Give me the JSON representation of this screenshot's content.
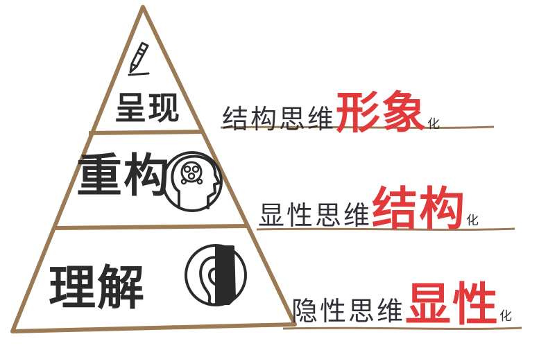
{
  "pyramid": {
    "levels": [
      {
        "label": "呈现"
      },
      {
        "label": "重构"
      },
      {
        "label": "理解"
      }
    ]
  },
  "phrases": [
    {
      "base": "结构思维",
      "emphasis": "形象",
      "suffix": "化"
    },
    {
      "base": "显性思维",
      "emphasis": "结构",
      "suffix": "化"
    },
    {
      "base": "隐性思维",
      "emphasis": "显性",
      "suffix": "化"
    }
  ],
  "colors": {
    "outline": "#9a7b55",
    "text": "#2f2f35",
    "accent": "#e23a3a"
  },
  "icons": [
    "pen-icon",
    "head-brain-icon",
    "ear-icon"
  ]
}
